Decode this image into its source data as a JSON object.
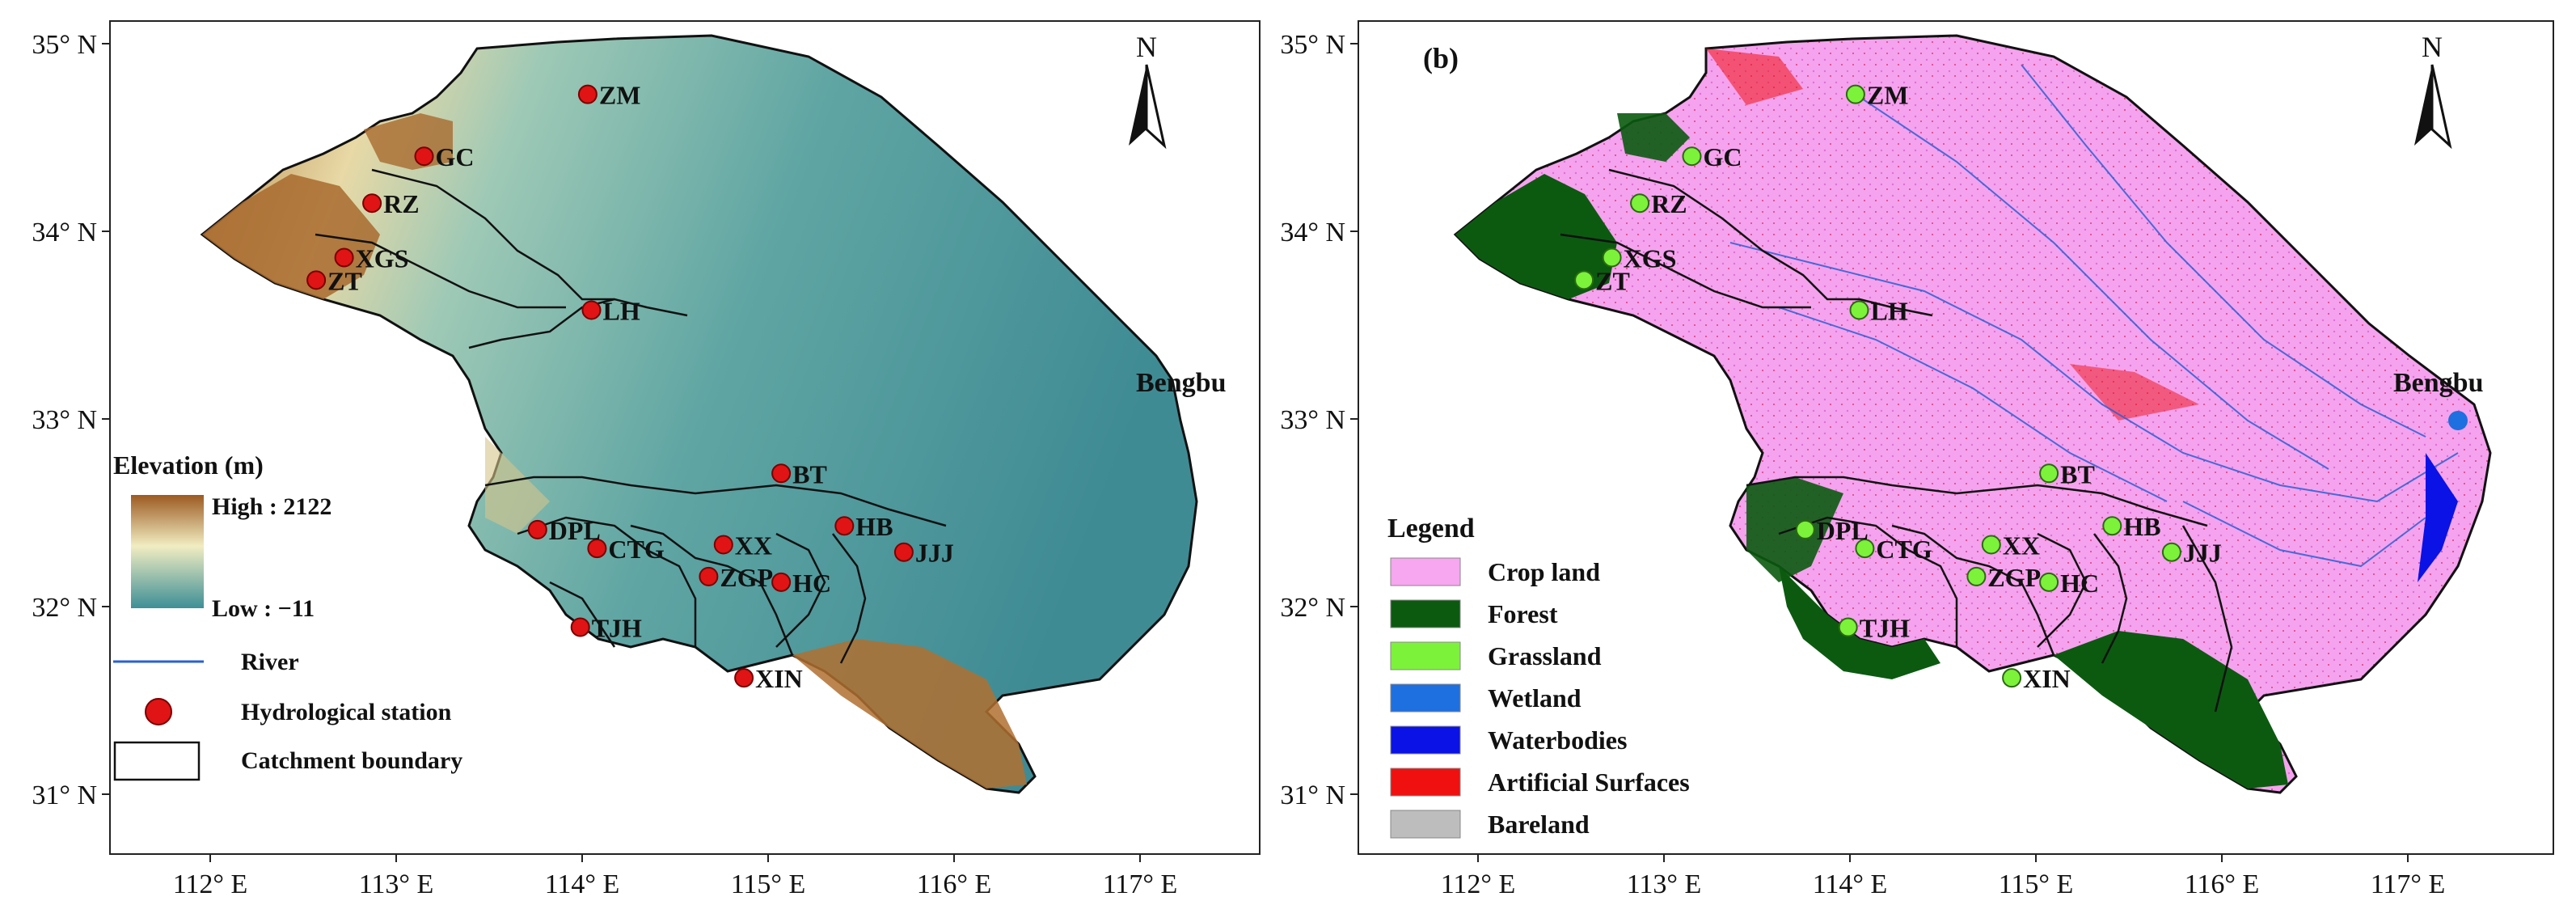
{
  "panel_a": {
    "lat_labels": [
      "35° N",
      "34° N",
      "33° N",
      "32° N",
      "31° N"
    ],
    "lon_labels": [
      "112° E",
      "113° E",
      "114° E",
      "115° E",
      "116° E",
      "117° E"
    ],
    "north_label": "N",
    "city_label": "Bengbu",
    "legend": {
      "title": "Elevation (m)",
      "high": "High : 2122",
      "low": "Low : −11",
      "river": "River",
      "station": "Hydrological station",
      "boundary": "Catchment boundary"
    },
    "stations": [
      {
        "name": "ZM",
        "lon": 114.03,
        "lat": 34.73
      },
      {
        "name": "GC",
        "lon": 113.15,
        "lat": 34.4
      },
      {
        "name": "RZ",
        "lon": 112.87,
        "lat": 34.15
      },
      {
        "name": "XGS",
        "lon": 112.72,
        "lat": 33.86
      },
      {
        "name": "ZT",
        "lon": 112.57,
        "lat": 33.74
      },
      {
        "name": "LH",
        "lon": 114.05,
        "lat": 33.58
      },
      {
        "name": "BT",
        "lon": 115.07,
        "lat": 32.71
      },
      {
        "name": "HB",
        "lon": 115.41,
        "lat": 32.43
      },
      {
        "name": "JJJ",
        "lon": 115.73,
        "lat": 32.29
      },
      {
        "name": "XX",
        "lon": 114.76,
        "lat": 32.33
      },
      {
        "name": "CTG",
        "lon": 114.08,
        "lat": 32.31
      },
      {
        "name": "DPL",
        "lon": 113.76,
        "lat": 32.41
      },
      {
        "name": "ZGP",
        "lon": 114.68,
        "lat": 32.16
      },
      {
        "name": "HC",
        "lon": 115.07,
        "lat": 32.13
      },
      {
        "name": "TJH",
        "lon": 113.99,
        "lat": 31.89
      },
      {
        "name": "XIN",
        "lon": 114.87,
        "lat": 31.62
      }
    ]
  },
  "panel_b": {
    "panel_label": "(b)",
    "lat_labels": [
      "35° N",
      "34° N",
      "33° N",
      "32° N",
      "31° N"
    ],
    "lon_labels": [
      "112° E",
      "113° E",
      "114° E",
      "115° E",
      "116° E",
      "117° E"
    ],
    "north_label": "N",
    "city_label": "Bengbu",
    "legend": {
      "title": "Legend",
      "items": [
        {
          "label": "Crop land",
          "color": "#f7a6f0"
        },
        {
          "label": "Forest",
          "color": "#0b5a10"
        },
        {
          "label": "Grassland",
          "color": "#7cf23a"
        },
        {
          "label": "Wetland",
          "color": "#1e6fe0"
        },
        {
          "label": "Waterbodies",
          "color": "#0a12e6"
        },
        {
          "label": "Artificial Surfaces",
          "color": "#f01010"
        },
        {
          "label": "Bareland",
          "color": "#bdbdbd"
        }
      ]
    },
    "stations": [
      {
        "name": "ZM",
        "lon": 114.03,
        "lat": 34.73
      },
      {
        "name": "GC",
        "lon": 113.15,
        "lat": 34.4
      },
      {
        "name": "RZ",
        "lon": 112.87,
        "lat": 34.15
      },
      {
        "name": "XGS",
        "lon": 112.72,
        "lat": 33.86
      },
      {
        "name": "ZT",
        "lon": 112.57,
        "lat": 33.74
      },
      {
        "name": "LH",
        "lon": 114.05,
        "lat": 33.58
      },
      {
        "name": "BT",
        "lon": 115.07,
        "lat": 32.71
      },
      {
        "name": "HB",
        "lon": 115.41,
        "lat": 32.43
      },
      {
        "name": "JJJ",
        "lon": 115.73,
        "lat": 32.29
      },
      {
        "name": "XX",
        "lon": 114.76,
        "lat": 32.33
      },
      {
        "name": "CTG",
        "lon": 114.08,
        "lat": 32.31
      },
      {
        "name": "DPL",
        "lon": 113.76,
        "lat": 32.41
      },
      {
        "name": "ZGP",
        "lon": 114.68,
        "lat": 32.16
      },
      {
        "name": "HC",
        "lon": 115.07,
        "lat": 32.13
      },
      {
        "name": "TJH",
        "lon": 113.99,
        "lat": 31.89
      },
      {
        "name": "XIN",
        "lon": 114.87,
        "lat": 31.62
      }
    ]
  },
  "colors": {
    "station_a": "#e01414",
    "station_b": "#7cf23a",
    "river": "#2a5fd6",
    "elev_high": "#9c5a22",
    "elev_mid": "#f1edc2",
    "elev_low": "#3d8f96"
  }
}
